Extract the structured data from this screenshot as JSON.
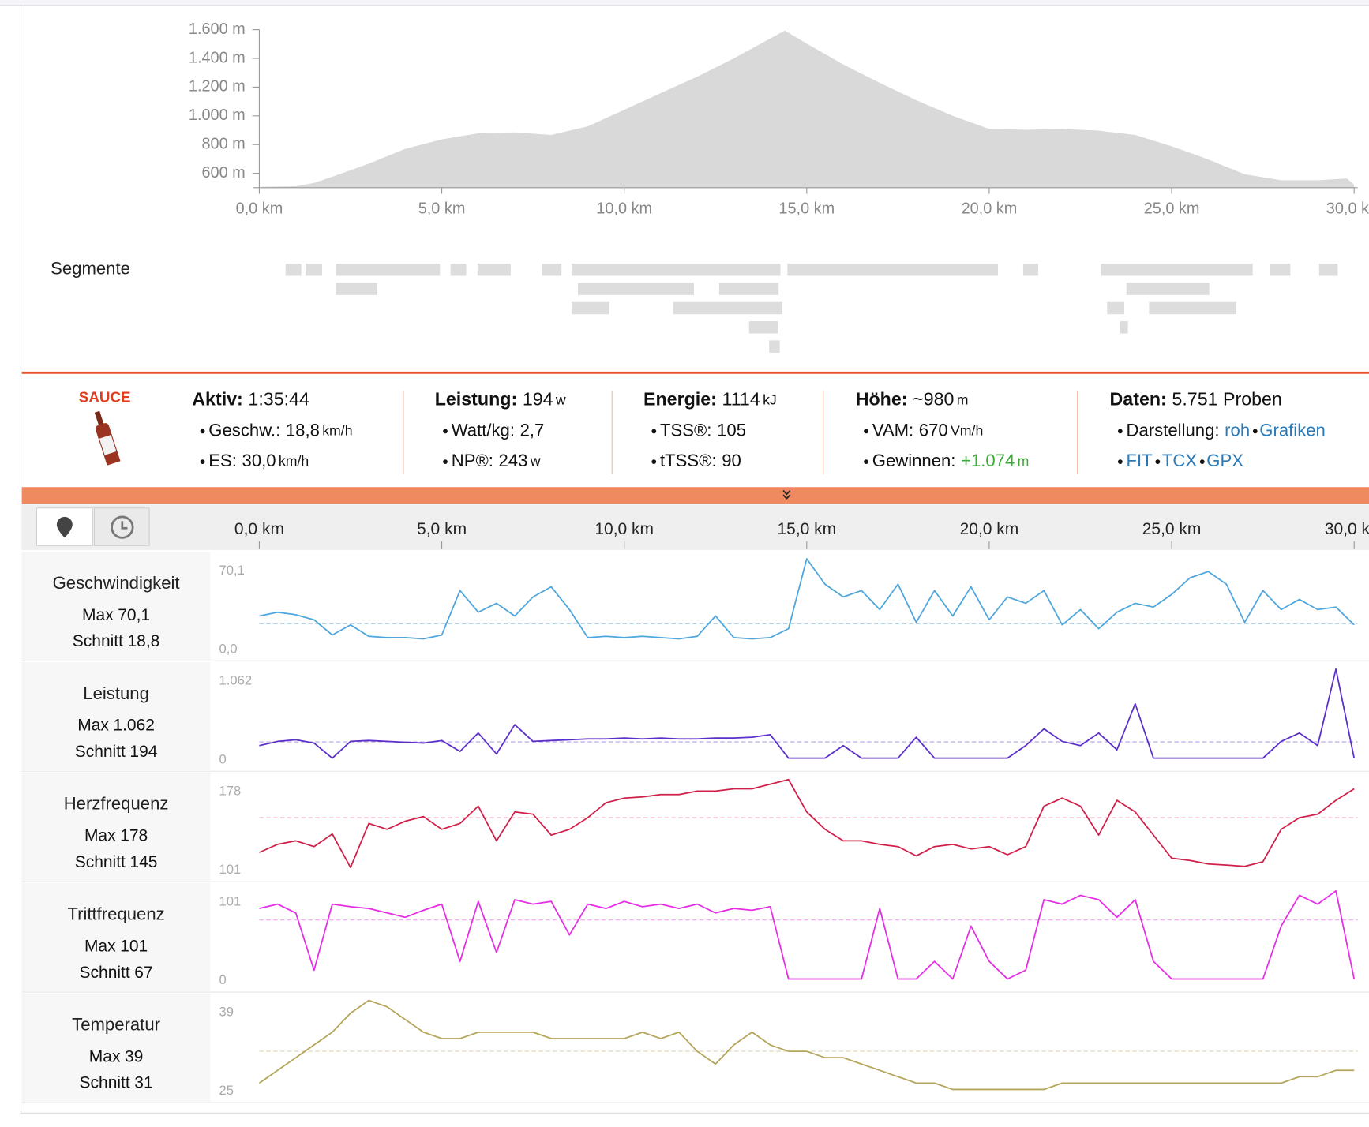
{
  "elevation": {
    "type": "area",
    "color": "#d9d9d9",
    "x": [
      0,
      1,
      1.5,
      2,
      3,
      4,
      5,
      6,
      7,
      8,
      9,
      10,
      11,
      12,
      13,
      14,
      14.4,
      15,
      16,
      17,
      18,
      19,
      20,
      21,
      22,
      23,
      24,
      25,
      26,
      27,
      28,
      29,
      29.8,
      30
    ],
    "values": [
      505,
      510,
      533,
      576,
      667,
      770,
      836,
      879,
      885,
      867,
      927,
      1042,
      1158,
      1273,
      1400,
      1539,
      1594,
      1503,
      1358,
      1230,
      1109,
      1000,
      909,
      903,
      909,
      897,
      867,
      788,
      697,
      594,
      552,
      552,
      564,
      521
    ],
    "xlim": [
      0,
      30
    ],
    "ylim": [
      500,
      1600
    ],
    "xticks": [
      {
        "value": 0,
        "label": "0,0 km"
      },
      {
        "value": 5,
        "label": "5,0 km"
      },
      {
        "value": 10,
        "label": "10,0 km"
      },
      {
        "value": 15,
        "label": "15,0 km"
      },
      {
        "value": 20,
        "label": "20,0 km"
      },
      {
        "value": 25,
        "label": "25,0 km"
      },
      {
        "value": 30,
        "label": "30,0 km"
      }
    ],
    "yticks": [
      {
        "value": 600,
        "label": "600 m"
      },
      {
        "value": 800,
        "label": "800 m"
      },
      {
        "value": 1000,
        "label": "1.000 m"
      },
      {
        "value": 1200,
        "label": "1.200 m"
      },
      {
        "value": 1400,
        "label": "1.400 m"
      },
      {
        "value": 1600,
        "label": "1.600 m"
      }
    ]
  },
  "segments": {
    "title": "Segmente",
    "color": "#dddddd",
    "ranges": [
      [
        0.72,
        1.15
      ],
      [
        1.27,
        1.72
      ],
      [
        2.1,
        4.95
      ],
      [
        5.24,
        5.67
      ],
      [
        5.98,
        6.89
      ],
      [
        7.75,
        8.28
      ],
      [
        8.56,
        14.28
      ],
      [
        14.47,
        20.24
      ],
      [
        20.93,
        21.34
      ],
      [
        23.06,
        27.22
      ],
      [
        27.68,
        28.25
      ],
      [
        29.04,
        29.55
      ],
      [
        2.1,
        3.23
      ],
      [
        8.73,
        11.91
      ],
      [
        12.6,
        14.23
      ],
      [
        23.76,
        26.03
      ],
      [
        8.56,
        9.59
      ],
      [
        11.34,
        14.33
      ],
      [
        23.23,
        23.7
      ],
      [
        24.38,
        26.77
      ],
      [
        13.42,
        14.21
      ],
      [
        23.59,
        23.8
      ],
      [
        13.97,
        14.26
      ]
    ]
  },
  "stats": {
    "logo": "SAUCE",
    "columns": [
      {
        "head": {
          "label": "Aktiv:",
          "value": "1:35:44"
        },
        "items": [
          {
            "label": "Geschw.:",
            "value": "18,8",
            "unit": "km/h"
          },
          {
            "label": "ES:",
            "value": "30,0",
            "unit": "km/h"
          }
        ]
      },
      {
        "head": {
          "label": "Leistung:",
          "value": "194",
          "unit": "w"
        },
        "items": [
          {
            "label": "Watt/kg:",
            "value": "2,7"
          },
          {
            "label": "NP®:",
            "value": "243",
            "unit": "w"
          }
        ]
      },
      {
        "head": {
          "label": "Energie:",
          "value": "1114",
          "unit": "kJ"
        },
        "items": [
          {
            "label": "TSS®:",
            "value": "105"
          },
          {
            "label": "tTSS®:",
            "value": "90"
          }
        ]
      },
      {
        "head": {
          "label": "Höhe:",
          "value": "~980",
          "unit": "m"
        },
        "items": [
          {
            "label": "VAM:",
            "value": "670",
            "unit": "Vm/h"
          },
          {
            "label": "Gewinnen:",
            "value": "+1.074",
            "unit": "m",
            "color": "#3aa935"
          }
        ]
      },
      {
        "head": {
          "label": "Daten:",
          "value": "5.751 Proben"
        },
        "items": [
          {
            "label": "Darstellung:",
            "links": [
              "roh",
              "Grafiken"
            ]
          },
          {
            "links": [
              "FIT",
              "TCX",
              "GPX"
            ]
          }
        ]
      }
    ]
  },
  "streams": {
    "type": "line",
    "xlim": [
      0,
      30
    ],
    "max_title": "Max",
    "avg_title": "Schnitt",
    "xticks": [
      {
        "value": 0,
        "label": "0,0 km"
      },
      {
        "value": 5,
        "label": "5,0 km"
      },
      {
        "value": 10,
        "label": "10,0 km"
      },
      {
        "value": 15,
        "label": "15,0 km"
      },
      {
        "value": 20,
        "label": "20,0 km"
      },
      {
        "value": 25,
        "label": "25,0 km"
      },
      {
        "value": 30,
        "label": "30,0 km"
      }
    ],
    "x": [
      0,
      0.5,
      1,
      1.5,
      2,
      2.5,
      3,
      3.5,
      4,
      4.5,
      5,
      5.5,
      6,
      6.5,
      7,
      7.5,
      8,
      8.5,
      9,
      9.5,
      10,
      10.5,
      11,
      11.5,
      12,
      12.5,
      13,
      13.5,
      14,
      14.5,
      15,
      15.5,
      16,
      16.5,
      17,
      17.5,
      18,
      18.5,
      19,
      19.5,
      20,
      20.5,
      21,
      21.5,
      22,
      22.5,
      23,
      23.5,
      24,
      24.5,
      25,
      25.5,
      26,
      26.5,
      27,
      27.5,
      28,
      28.5,
      29,
      29.5,
      30
    ],
    "series": [
      {
        "name": "Geschwindigkeit",
        "color": "#4ea6dc",
        "ylim": [
          0,
          70.1
        ],
        "yticks": [
          {
            "value": 0,
            "label": "0,0"
          },
          {
            "value": 70.1,
            "label": "70,1"
          }
        ],
        "max": {
          "value": 70.1,
          "label": "70,1"
        },
        "avg": {
          "value": 18.8,
          "label": "18,8"
        },
        "values": [
          25,
          28,
          26,
          22,
          10,
          18,
          9,
          8,
          8,
          7,
          10,
          45,
          28,
          35,
          25,
          40,
          48,
          30,
          8,
          9,
          8,
          9,
          8,
          7,
          9,
          25,
          8,
          7,
          8,
          15,
          70,
          50,
          40,
          45,
          30,
          50,
          20,
          45,
          25,
          48,
          22,
          40,
          35,
          45,
          18,
          30,
          15,
          28,
          35,
          32,
          42,
          55,
          60,
          50,
          20,
          45,
          30,
          38,
          30,
          32,
          18
        ]
      },
      {
        "name": "Leistung",
        "color": "#5b2fc9",
        "ylim": [
          0,
          1062
        ],
        "yticks": [
          0,
          {
            "value": 1062,
            "label": "1.062"
          }
        ],
        "max": {
          "value": 1062,
          "label": "1.062"
        },
        "avg": {
          "value": 194,
          "label": "194"
        },
        "values": [
          150,
          200,
          220,
          180,
          0,
          200,
          210,
          200,
          190,
          180,
          210,
          80,
          300,
          50,
          400,
          200,
          210,
          220,
          230,
          230,
          240,
          230,
          240,
          230,
          230,
          240,
          240,
          250,
          280,
          0,
          0,
          0,
          150,
          0,
          0,
          0,
          250,
          0,
          0,
          0,
          0,
          0,
          150,
          350,
          200,
          150,
          300,
          100,
          650,
          0,
          0,
          0,
          0,
          0,
          0,
          0,
          200,
          300,
          150,
          1062,
          0
        ]
      },
      {
        "name": "Herzfrequenz",
        "color": "#d0204a",
        "ylim": [
          101,
          178
        ],
        "yticks": [
          101,
          178
        ],
        "max": {
          "value": 178,
          "label": "178"
        },
        "avg": {
          "value": 145,
          "label": "145"
        },
        "values": [
          115,
          122,
          125,
          120,
          131,
          102,
          140,
          135,
          142,
          146,
          135,
          140,
          155,
          125,
          150,
          148,
          130,
          135,
          145,
          158,
          162,
          163,
          165,
          165,
          168,
          168,
          170,
          170,
          174,
          178,
          150,
          135,
          125,
          125,
          122,
          120,
          112,
          120,
          122,
          118,
          120,
          113,
          120,
          155,
          162,
          155,
          130,
          160,
          150,
          130,
          110,
          108,
          105,
          104,
          103,
          107,
          135,
          145,
          148,
          160,
          170
        ]
      },
      {
        "name": "Trittfrequenz",
        "color": "#e52ee5",
        "ylim": [
          0,
          101
        ],
        "yticks": [
          0,
          101
        ],
        "max": {
          "value": 101,
          "label": "101"
        },
        "avg": {
          "value": 67,
          "label": "67"
        },
        "values": [
          80,
          85,
          75,
          10,
          85,
          82,
          80,
          75,
          70,
          78,
          85,
          20,
          88,
          30,
          90,
          85,
          88,
          50,
          85,
          80,
          88,
          82,
          85,
          80,
          85,
          75,
          80,
          78,
          82,
          0,
          0,
          0,
          0,
          0,
          80,
          0,
          0,
          20,
          0,
          60,
          20,
          0,
          10,
          90,
          85,
          95,
          90,
          70,
          90,
          20,
          0,
          0,
          0,
          0,
          0,
          0,
          60,
          95,
          85,
          100,
          0
        ]
      },
      {
        "name": "Temperatur",
        "color": "#b5a55a",
        "ylim": [
          25,
          39
        ],
        "yticks": [
          25,
          39
        ],
        "max": {
          "value": 39,
          "label": "39"
        },
        "avg": {
          "value": 31,
          "label": "31"
        },
        "values": [
          26,
          28,
          30,
          32,
          34,
          37,
          39,
          38,
          36,
          34,
          33,
          33,
          34,
          34,
          34,
          34,
          33,
          33,
          33,
          33,
          33,
          34,
          33,
          34,
          31,
          29,
          32,
          34,
          32,
          31,
          31,
          30,
          30,
          29,
          28,
          27,
          26,
          26,
          25,
          25,
          25,
          25,
          25,
          25,
          26,
          26,
          26,
          26,
          26,
          26,
          26,
          26,
          26,
          26,
          26,
          26,
          26,
          27,
          27,
          28,
          28
        ]
      }
    ]
  }
}
